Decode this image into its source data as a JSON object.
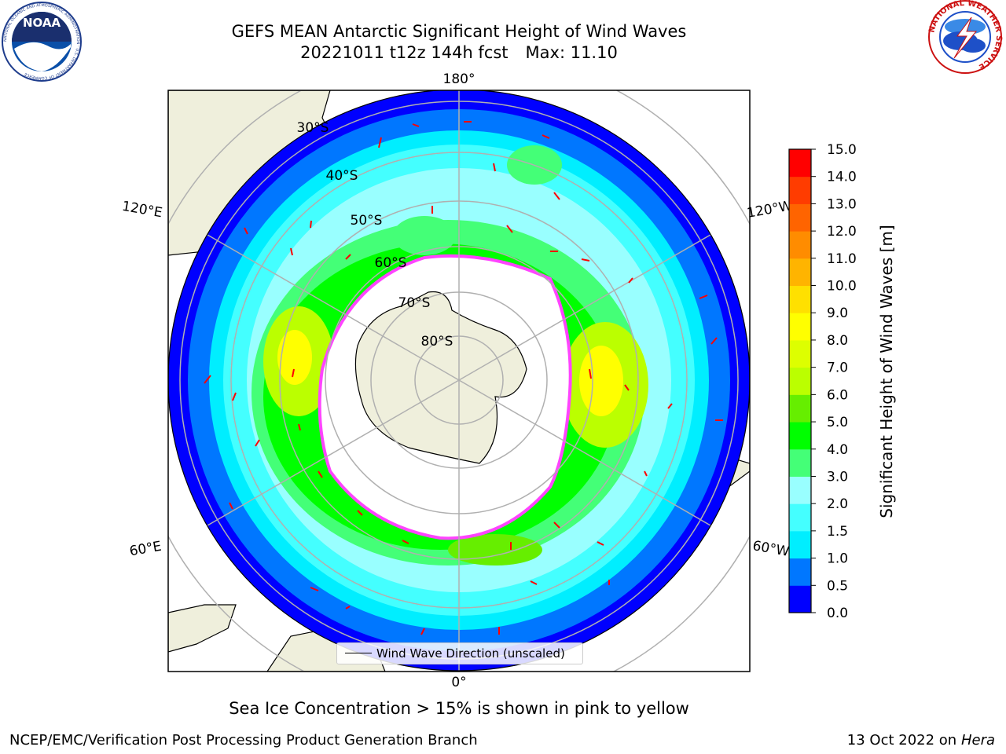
{
  "header": {
    "title_line1": "GEFS MEAN Antarctic Significant Height of Wind Waves",
    "title_line2_date": "20221011 t12z 144h fcst",
    "title_line2_max": "Max: 11.10"
  },
  "logos": {
    "left_text": "NOAA",
    "left_ring_text": "NATIONAL OCEANIC AND ATMOSPHERIC ADMINISTRATION · U.S. DEPARTMENT OF COMMERCE",
    "right_ring_text": "NATIONAL WEATHER SERVICE"
  },
  "map": {
    "projection": "south-polar-stereographic",
    "longitude_labels": [
      "180°",
      "120°E",
      "120°W",
      "60°E",
      "60°W",
      "0°"
    ],
    "latitude_labels": [
      "30°S",
      "40°S",
      "50°S",
      "60°S",
      "70°S",
      "80°S"
    ],
    "legend_label": "Wind Wave Direction (unscaled)",
    "colors": {
      "land": "#efefdc",
      "sea_ice": "#ffffff",
      "ice_edge": "#ff44ff",
      "arrow": "#ff0000",
      "grid": "#b0b0b0"
    }
  },
  "colorbar": {
    "label": "Significant Height of Wind Waves [m]",
    "levels": [
      "0.0",
      "0.5",
      "1.0",
      "1.5",
      "2.0",
      "3.0",
      "4.0",
      "5.0",
      "6.0",
      "7.0",
      "8.0",
      "9.0",
      "10.0",
      "11.0",
      "12.0",
      "13.0",
      "14.0",
      "15.0"
    ],
    "colors": [
      "#0000ff",
      "#0077ff",
      "#00eeff",
      "#44ffff",
      "#99ffff",
      "#44ff77",
      "#00ff00",
      "#66ee00",
      "#bbff00",
      "#ddff00",
      "#ffff00",
      "#ffe000",
      "#ffb400",
      "#ff8c00",
      "#ff6400",
      "#ff3c00",
      "#ff0000"
    ]
  },
  "footer": {
    "note": "Sea Ice Concentration > 15% is shown in pink to yellow",
    "credit": "NCEP/EMC/Verification Post Processing Product Generation Branch",
    "date": "13 Oct 2022 on ",
    "machine": "Hera"
  }
}
